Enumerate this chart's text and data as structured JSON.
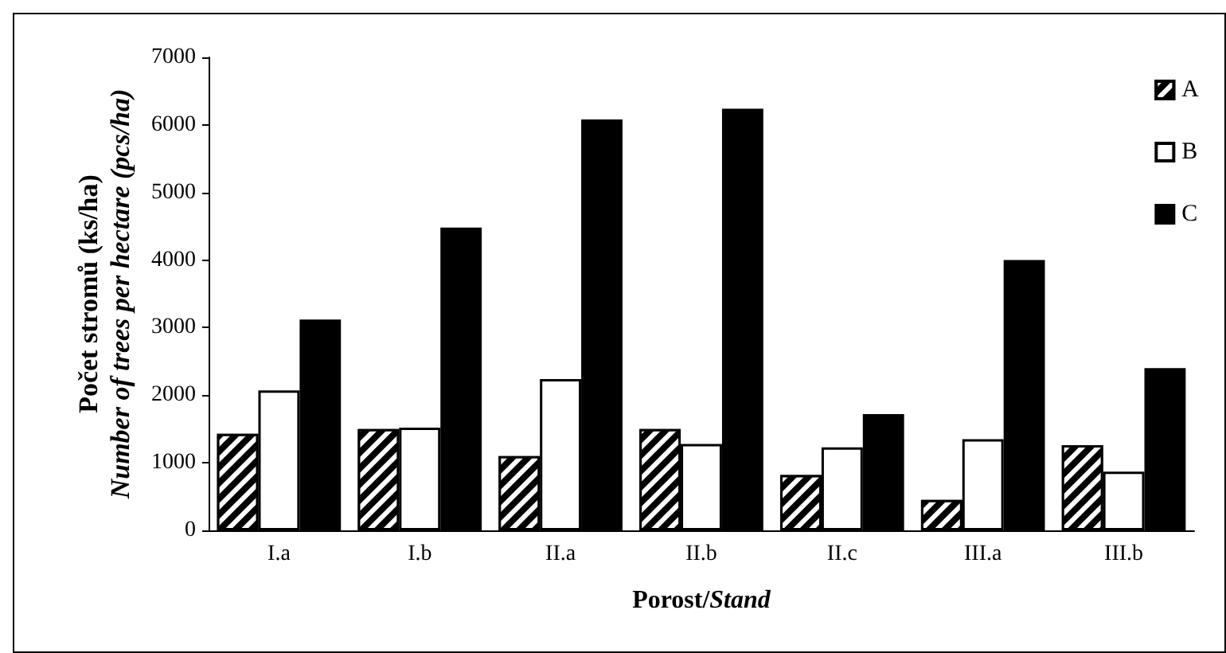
{
  "chart_data": {
    "type": "bar",
    "xlabel": "Porost/Stand",
    "ylabel": "Počet stromů (ks/ha)\nNumber of trees per hectare (pcs/ha)",
    "categories": [
      "I.a",
      "I.b",
      "II.a",
      "II.b",
      "II.c",
      "III.a",
      "III.b"
    ],
    "series": [
      {
        "name": "A",
        "color": "#000000",
        "values": [
          1430,
          1500,
          1100,
          1500,
          820,
          450,
          1260
        ]
      },
      {
        "name": "B",
        "color": "#ffffff",
        "values": [
          2070,
          1520,
          2240,
          1280,
          1230,
          1350,
          870
        ]
      },
      {
        "name": "C",
        "color": "#000000",
        "values": [
          3120,
          4480,
          6080,
          6240,
          1720,
          4000,
          2400
        ]
      }
    ],
    "ylim": [
      0,
      7000
    ],
    "yticks": [
      0,
      1000,
      2000,
      3000,
      4000,
      5000,
      6000,
      7000
    ],
    "grid": false,
    "legend": "top right"
  }
}
